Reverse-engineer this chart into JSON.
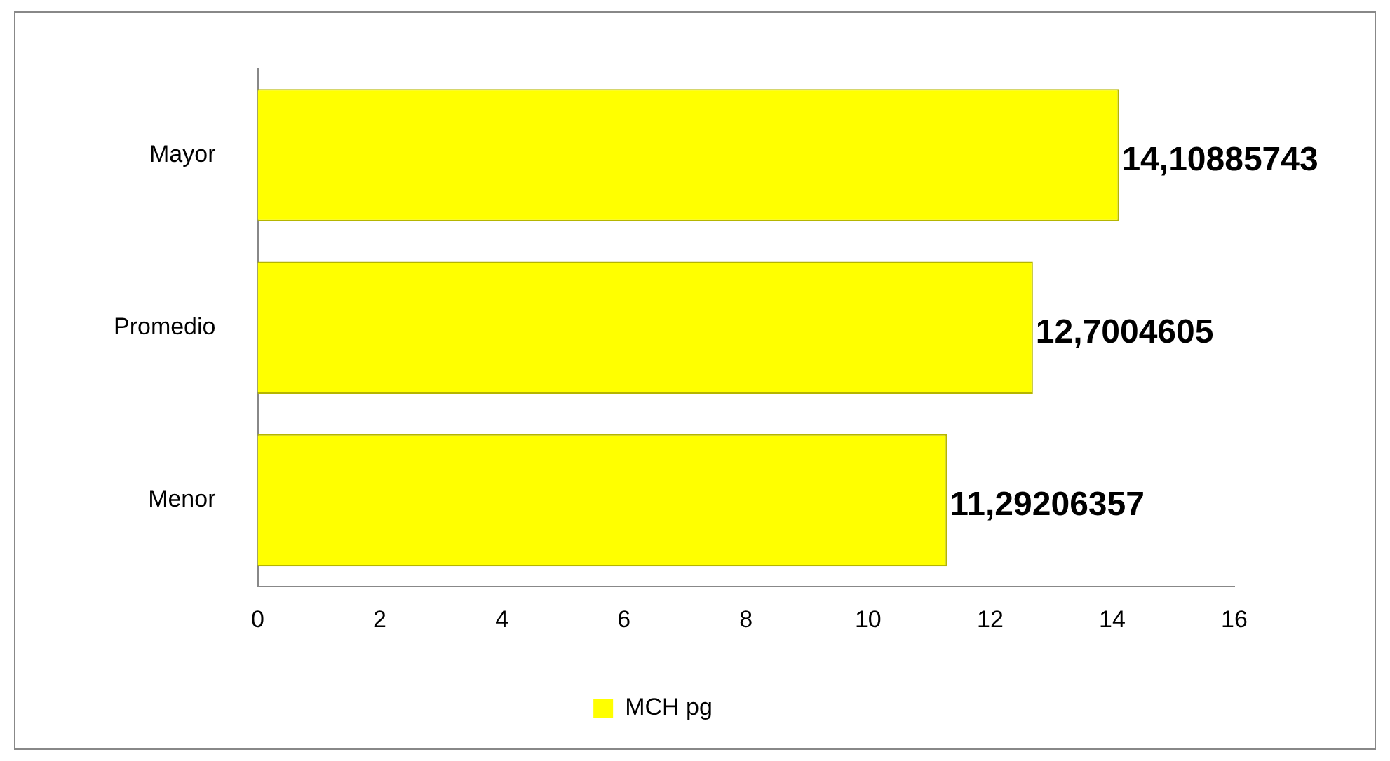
{
  "chart_data": {
    "type": "bar",
    "orientation": "horizontal",
    "categories": [
      "Mayor",
      "Promedio",
      "Menor"
    ],
    "series": [
      {
        "name": "MCH pg",
        "color": "#ffff00",
        "values": [
          14.10885743,
          12.7004605,
          11.29206357
        ],
        "value_labels": [
          "14,10885743",
          "12,7004605",
          "11,29206357"
        ]
      }
    ],
    "xlim": [
      0,
      16
    ],
    "xticks": [
      0,
      2,
      4,
      6,
      8,
      10,
      12,
      14,
      16
    ],
    "grid": false,
    "legend": "bottom"
  }
}
